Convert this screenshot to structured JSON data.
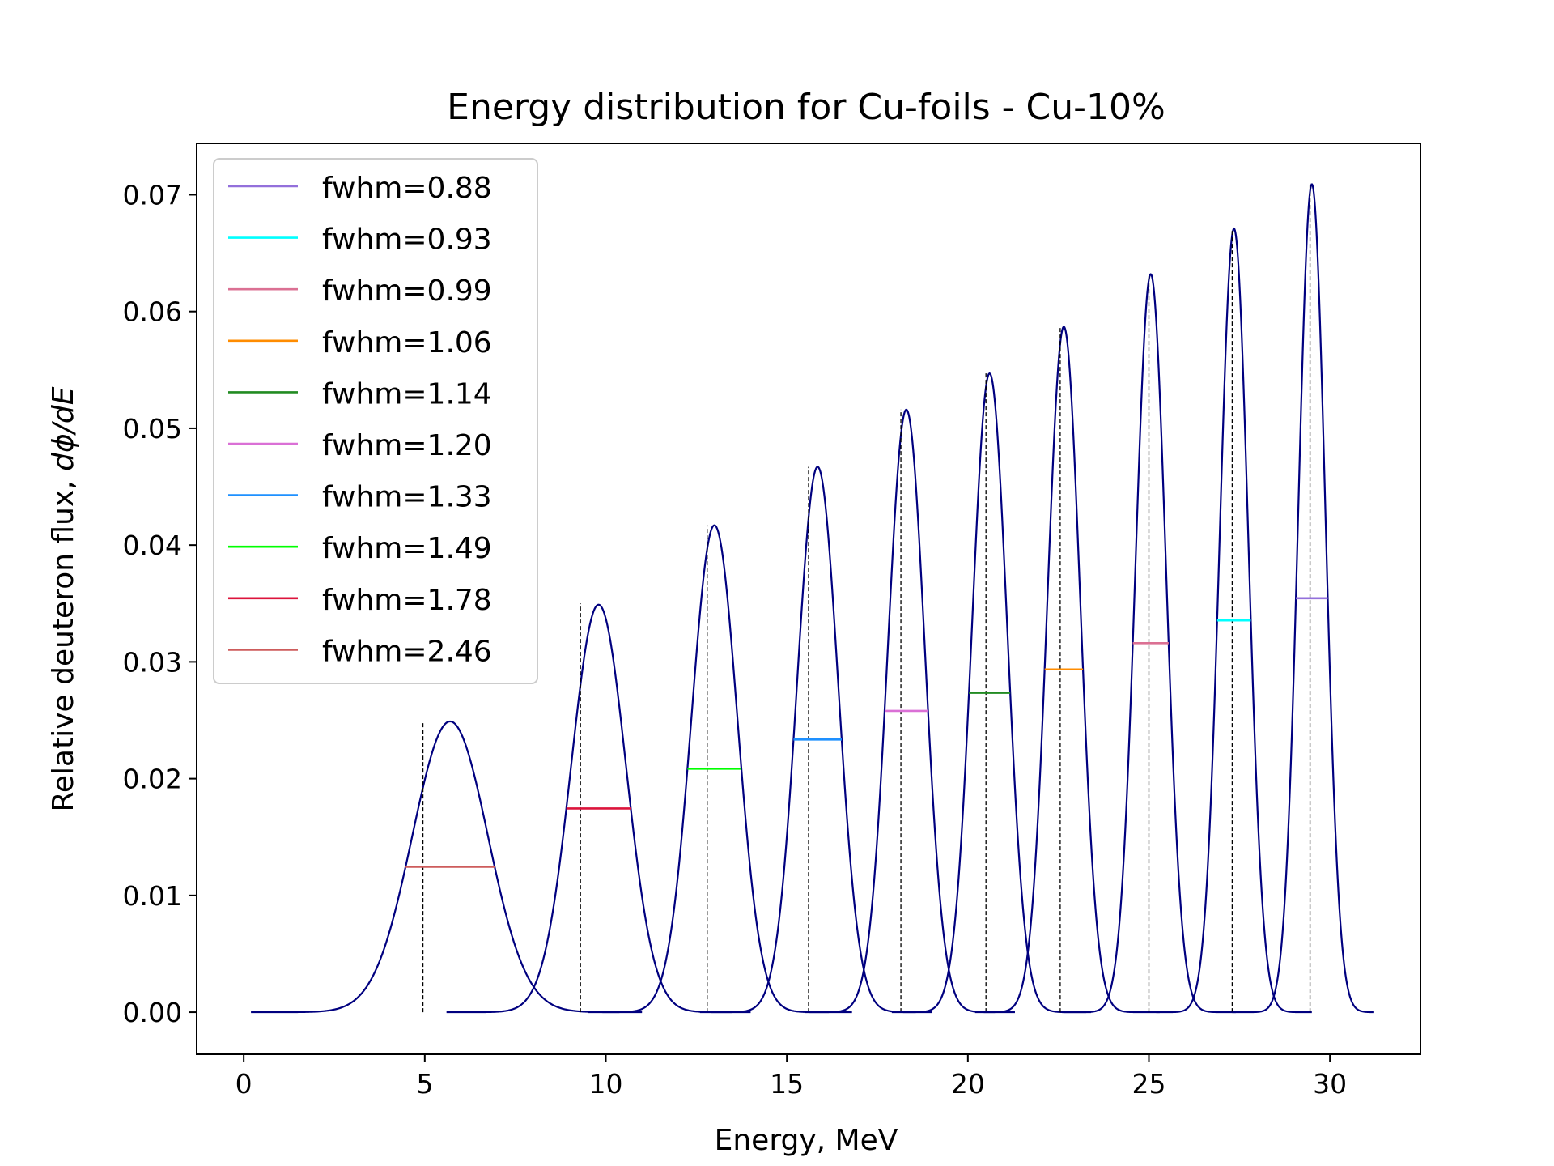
{
  "chart_data": {
    "type": "line",
    "title": "Energy distribution for Cu-foils - Cu-10%",
    "xlabel": "Energy, MeV",
    "ylabel_prefix": "Relative deuteron flux, ",
    "ylabel_math": "dϕ/dE",
    "xlim": [
      -1.3,
      32.5
    ],
    "ylim": [
      -0.0036,
      0.0744
    ],
    "xticks": [
      0,
      5,
      10,
      15,
      20,
      25,
      30
    ],
    "yticks": [
      0.0,
      0.01,
      0.02,
      0.03,
      0.04,
      0.05,
      0.06,
      0.07
    ],
    "ytick_labels": [
      "0.00",
      "0.01",
      "0.02",
      "0.03",
      "0.04",
      "0.05",
      "0.06",
      "0.07"
    ],
    "curve_color": "#00007f",
    "grid": false,
    "legend_position": "upper-left",
    "series": [
      {
        "name": "fwhm=2.46",
        "peak_x": 5.7,
        "peak_y": 0.0249,
        "fwhm": 2.46,
        "x_range": [
          0.2,
          11.0
        ],
        "marker_x": 4.95,
        "marker_top": 0.0249,
        "color": "#cd5c5c"
      },
      {
        "name": "fwhm=1.78",
        "peak_x": 9.8,
        "peak_y": 0.0349,
        "fwhm": 1.78,
        "x_range": [
          5.6,
          14.0
        ],
        "marker_x": 9.3,
        "marker_top": 0.035,
        "color": "#dc143c"
      },
      {
        "name": "fwhm=1.49",
        "peak_x": 13.0,
        "peak_y": 0.0417,
        "fwhm": 1.49,
        "x_range": [
          9.5,
          16.8
        ],
        "marker_x": 12.8,
        "marker_top": 0.0417,
        "color": "#00ff00"
      },
      {
        "name": "fwhm=1.33",
        "peak_x": 15.85,
        "peak_y": 0.0467,
        "fwhm": 1.33,
        "x_range": [
          12.6,
          19.0
        ],
        "marker_x": 15.6,
        "marker_top": 0.0467,
        "color": "#1e90ff"
      },
      {
        "name": "fwhm=1.20",
        "peak_x": 18.3,
        "peak_y": 0.0516,
        "fwhm": 1.2,
        "x_range": [
          15.5,
          21.3
        ],
        "marker_x": 18.15,
        "marker_top": 0.0516,
        "color": "#da70d6"
      },
      {
        "name": "fwhm=1.14",
        "peak_x": 20.6,
        "peak_y": 0.0547,
        "fwhm": 1.14,
        "x_range": [
          17.9,
          23.4
        ],
        "marker_x": 20.5,
        "marker_top": 0.0547,
        "color": "#228b22"
      },
      {
        "name": "fwhm=1.06",
        "peak_x": 22.65,
        "peak_y": 0.0587,
        "fwhm": 1.06,
        "x_range": [
          20.2,
          25.3
        ],
        "marker_x": 22.55,
        "marker_top": 0.0587,
        "color": "#ff8c00"
      },
      {
        "name": "fwhm=0.99",
        "peak_x": 25.05,
        "peak_y": 0.0632,
        "fwhm": 0.99,
        "x_range": [
          22.6,
          27.4
        ],
        "marker_x": 25.0,
        "marker_top": 0.0632,
        "color": "#db7093"
      },
      {
        "name": "fwhm=0.93",
        "peak_x": 27.35,
        "peak_y": 0.0671,
        "fwhm": 0.93,
        "x_range": [
          25.2,
          29.5
        ],
        "marker_x": 27.3,
        "marker_top": 0.0671,
        "color": "#00ffff"
      },
      {
        "name": "fwhm=0.88",
        "peak_x": 29.5,
        "peak_y": 0.0709,
        "fwhm": 0.88,
        "x_range": [
          27.3,
          31.2
        ],
        "marker_x": 29.45,
        "marker_top": 0.0709,
        "color": "#9370db"
      }
    ],
    "legend_order": [
      "fwhm=0.88",
      "fwhm=0.93",
      "fwhm=0.99",
      "fwhm=1.06",
      "fwhm=1.14",
      "fwhm=1.20",
      "fwhm=1.33",
      "fwhm=1.49",
      "fwhm=1.78",
      "fwhm=2.46"
    ]
  }
}
